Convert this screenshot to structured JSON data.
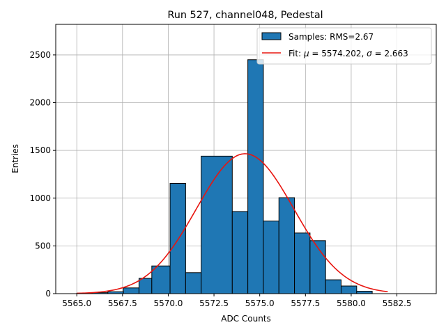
{
  "chart_data": {
    "type": "bar",
    "title": "Run 527, channel048, Pedestal",
    "xlabel": "ADC Counts",
    "ylabel": "Entries",
    "xlim": [
      5563.85,
      5584.65
    ],
    "ylim": [
      0,
      2820
    ],
    "grid": true,
    "legend_position": "upper-right",
    "x_ticks": [
      5565.0,
      5567.5,
      5570.0,
      5572.5,
      5575.0,
      5577.5,
      5580.0,
      5582.5
    ],
    "x_tick_labels": [
      "5565.0",
      "5567.5",
      "5570.0",
      "5572.5",
      "5575.0",
      "5577.5",
      "5580.0",
      "5582.5"
    ],
    "y_ticks": [
      0,
      500,
      1000,
      1500,
      2000,
      2500
    ],
    "y_tick_labels": [
      "0",
      "500",
      "1000",
      "1500",
      "2000",
      "2500"
    ],
    "bin_edges": [
      5565.0,
      5566.7,
      5568.4,
      5570.1,
      5571.8,
      5573.5,
      5575.2,
      5576.9,
      5578.6,
      5580.3,
      5582.0,
      5583.7
    ],
    "bins": [
      {
        "start": 5565.0,
        "end": 5565.85,
        "count": 5
      },
      {
        "start": 5565.85,
        "end": 5566.7,
        "count": 10
      },
      {
        "start": 5566.7,
        "end": 5567.55,
        "count": 20
      },
      {
        "start": 5567.55,
        "end": 5568.4,
        "count": 60
      },
      {
        "start": 5568.4,
        "end": 5569.1,
        "count": 160
      },
      {
        "start": 5569.1,
        "end": 5570.1,
        "count": 290
      },
      {
        "start": 5570.1,
        "end": 5570.95,
        "count": 1155
      },
      {
        "start": 5570.95,
        "end": 5571.8,
        "count": 220
      },
      {
        "start": 5571.8,
        "end": 5573.5,
        "count": 1440
      },
      {
        "start": 5573.5,
        "end": 5574.35,
        "count": 860
      },
      {
        "start": 5574.35,
        "end": 5575.2,
        "count": 2450
      },
      {
        "start": 5575.2,
        "end": 5576.05,
        "count": 760
      },
      {
        "start": 5576.05,
        "end": 5576.9,
        "count": 1005
      },
      {
        "start": 5576.9,
        "end": 5577.75,
        "count": 635
      },
      {
        "start": 5577.75,
        "end": 5578.6,
        "count": 555
      },
      {
        "start": 5578.6,
        "end": 5579.45,
        "count": 145
      },
      {
        "start": 5579.45,
        "end": 5580.3,
        "count": 80
      },
      {
        "start": 5580.3,
        "end": 5581.15,
        "count": 25
      }
    ],
    "fit": {
      "mu": 5574.202,
      "sigma": 2.663,
      "amplitude": 1465,
      "x_range": [
        5565.0,
        5582.0
      ]
    },
    "series": [
      {
        "name": "Samples: RMS=2.67",
        "kind": "histogram",
        "color": "#1f77b4",
        "edgecolor": "#000000"
      },
      {
        "name": "Fit: μ = 5574.202, σ = 2.663",
        "kind": "line",
        "color": "#e8150f"
      }
    ]
  },
  "legend": {
    "samples_label": "Samples: RMS=2.67",
    "fit_prefix": "Fit: ",
    "fit_mu_symbol": "μ",
    "fit_mid": " = 5574.202, ",
    "fit_sigma_symbol": "σ",
    "fit_suffix": " = 2.663"
  }
}
